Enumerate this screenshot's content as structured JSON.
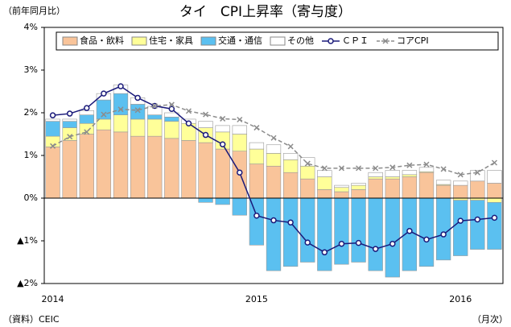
{
  "chart_data": {
    "type": "bar",
    "stacked": true,
    "title": "タイ　CPI上昇率（寄与度）",
    "y_axis_note": "（前年同月比）",
    "source": "（資料）CEIC",
    "x_axis_note": "（月次）",
    "categories": [
      "2014",
      null,
      null,
      null,
      null,
      null,
      null,
      null,
      null,
      null,
      null,
      null,
      "2015",
      null,
      null,
      null,
      null,
      null,
      null,
      null,
      null,
      null,
      null,
      null,
      "2016",
      null,
      null
    ],
    "ylim": [
      -2,
      4
    ],
    "yticks": [
      {
        "value": -2,
        "label": "▲2%"
      },
      {
        "value": -1,
        "label": "▲1%"
      },
      {
        "value": 0,
        "label": "0%"
      },
      {
        "value": 1,
        "label": "1%"
      },
      {
        "value": 2,
        "label": "2%"
      },
      {
        "value": 3,
        "label": "3%"
      },
      {
        "value": 4,
        "label": "4%"
      }
    ],
    "legend": "top",
    "series": [
      {
        "name": "食品・飲料",
        "color": "#f9c49a",
        "values": [
          1.2,
          1.35,
          1.5,
          1.6,
          1.55,
          1.45,
          1.45,
          1.4,
          1.35,
          1.3,
          1.15,
          1.1,
          0.8,
          0.75,
          0.6,
          0.45,
          0.2,
          0.15,
          0.2,
          0.45,
          0.45,
          0.5,
          0.6,
          0.3,
          0.3,
          0.4,
          0.35
        ]
      },
      {
        "name": "住宅・家具",
        "color": "#ffff99",
        "values": [
          0.25,
          0.3,
          0.25,
          0.25,
          0.4,
          0.4,
          0.4,
          0.4,
          0.4,
          0.35,
          0.4,
          0.4,
          0.35,
          0.3,
          0.3,
          0.3,
          0.3,
          0.1,
          0.1,
          0.05,
          0.05,
          0.05,
          0.02,
          0.02,
          -0.05,
          -0.05,
          -0.1
        ]
      },
      {
        "name": "交通・通信",
        "color": "#5bc0f0",
        "values": [
          0.35,
          0.15,
          0.2,
          0.45,
          0.5,
          0.35,
          0.1,
          0.1,
          0.0,
          -0.1,
          -0.15,
          -0.4,
          -1.1,
          -1.7,
          -1.6,
          -1.5,
          -1.7,
          -1.55,
          -1.5,
          -1.7,
          -1.85,
          -1.7,
          -1.6,
          -1.45,
          -1.3,
          -1.15,
          -1.1
        ]
      },
      {
        "name": "その他",
        "color": "#ffffff",
        "values": [
          0.05,
          0.05,
          0.1,
          0.15,
          0.2,
          0.15,
          0.2,
          0.1,
          0.1,
          0.15,
          0.15,
          0.2,
          0.15,
          0.2,
          0.15,
          0.2,
          0.15,
          0.05,
          0.05,
          0.1,
          0.15,
          0.1,
          0.1,
          0.1,
          0.1,
          0.25,
          0.3
        ]
      },
      {
        "name": "ＣＰＩ",
        "type": "line",
        "marker": "circle",
        "color": "#1a1a7a",
        "values": [
          1.94,
          1.98,
          2.11,
          2.45,
          2.62,
          2.35,
          2.16,
          2.09,
          1.75,
          1.48,
          1.26,
          0.6,
          -0.41,
          -0.52,
          -0.57,
          -1.04,
          -1.27,
          -1.07,
          -1.05,
          -1.19,
          -1.07,
          -0.77,
          -0.97,
          -0.85,
          -0.53,
          -0.5,
          -0.46
        ]
      },
      {
        "name": "コアCPI",
        "type": "line",
        "marker": "x",
        "dashed": true,
        "color": "#8c8c8c",
        "values": [
          1.22,
          1.44,
          1.55,
          1.96,
          2.08,
          2.06,
          2.16,
          2.19,
          2.04,
          1.96,
          1.86,
          1.84,
          1.65,
          1.41,
          1.21,
          0.81,
          0.7,
          0.7,
          0.7,
          0.7,
          0.72,
          0.77,
          0.79,
          0.68,
          0.55,
          0.6,
          0.83
        ]
      }
    ]
  }
}
